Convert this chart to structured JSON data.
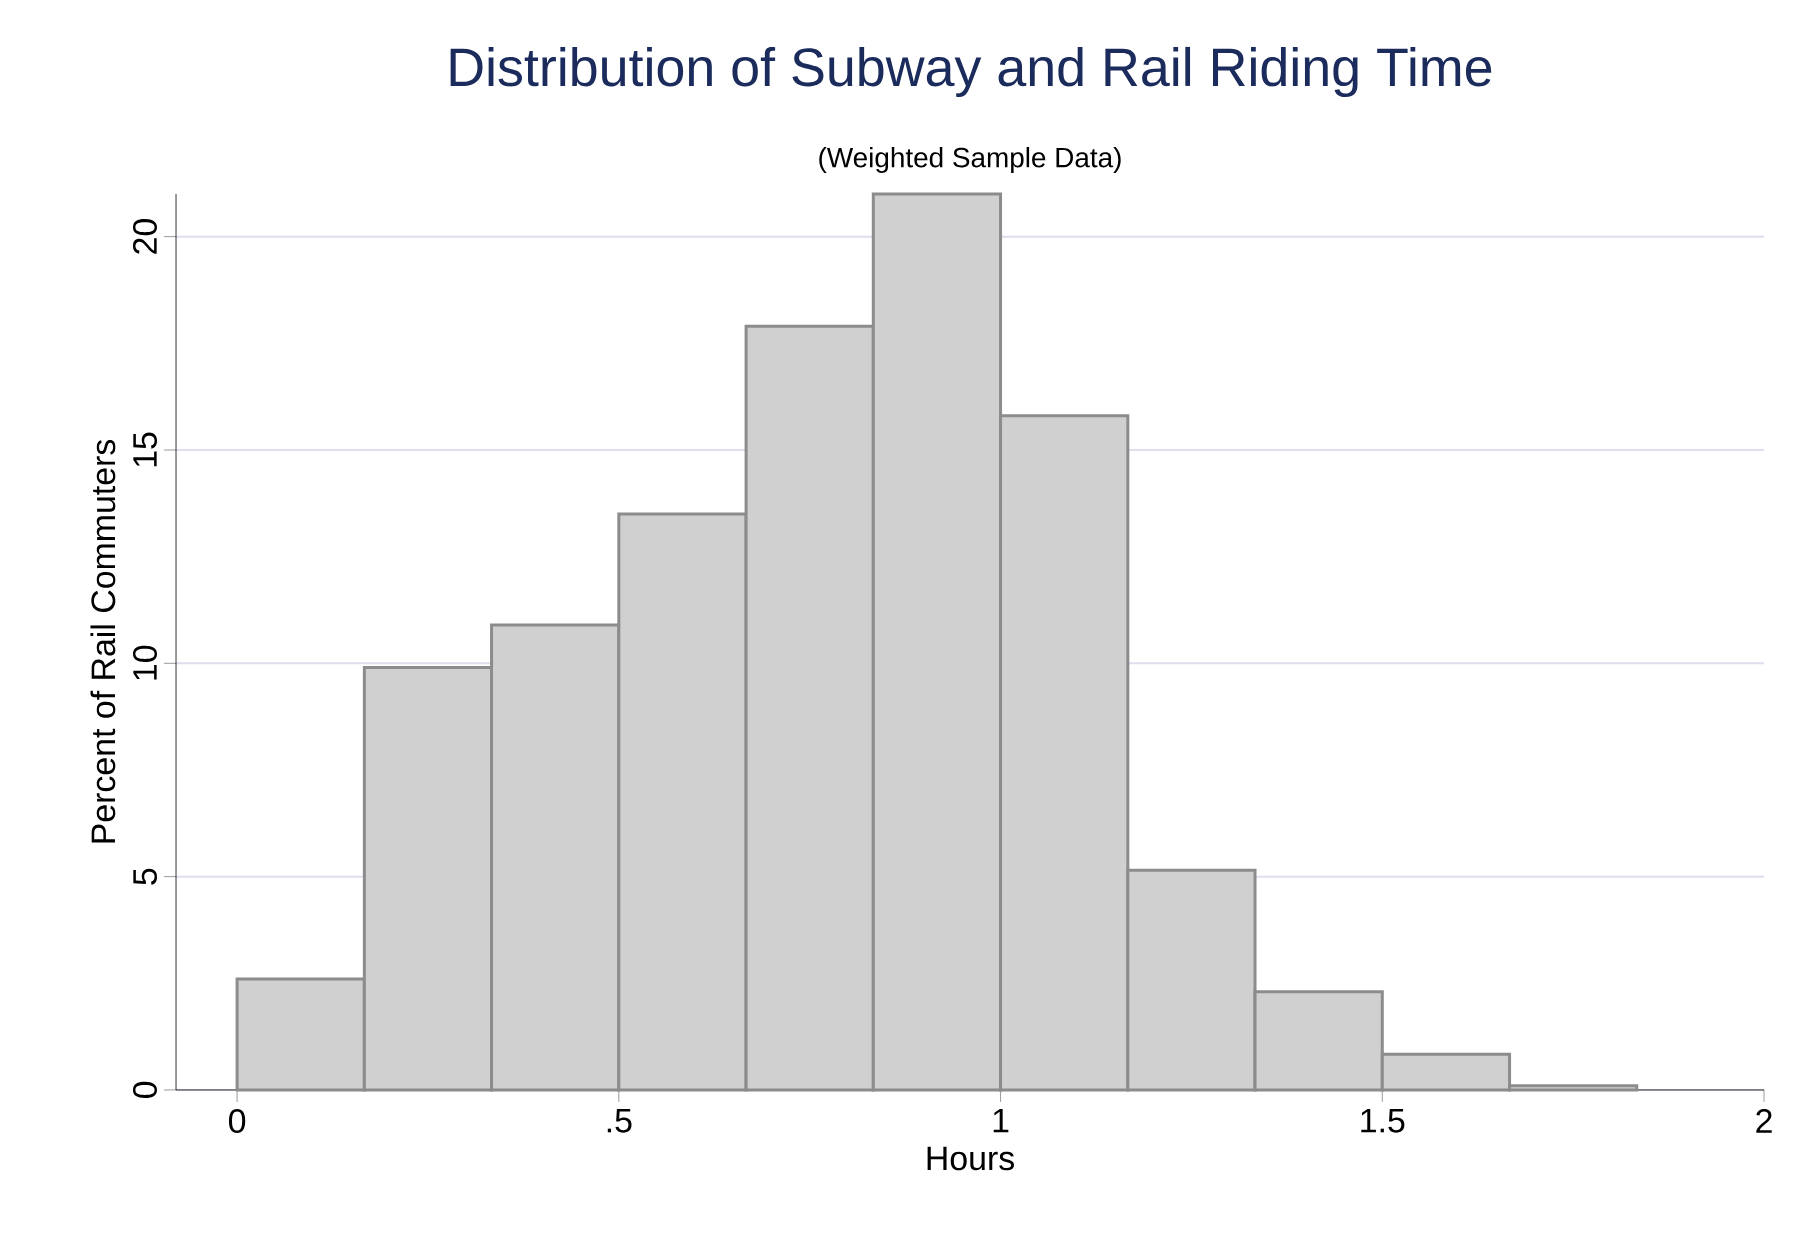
{
  "chart_data": {
    "type": "histogram",
    "title": "Distribution of Subway and Rail Riding Time",
    "subtitle": "(Weighted Sample Data)",
    "xlabel": "Hours",
    "ylabel": "Percent of Rail Commuters",
    "bins": [
      0,
      0.1667,
      0.3333,
      0.5,
      0.6667,
      0.8333,
      1,
      1.1667,
      1.3333,
      1.5,
      1.6667,
      1.8333
    ],
    "values": [
      2.6,
      9.9,
      10.9,
      13.5,
      17.9,
      21.0,
      15.8,
      5.15,
      2.3,
      0.84,
      0.1
    ],
    "color": "#d0d0d0",
    "xlim": [
      -0.08,
      2
    ],
    "ylim": [
      0,
      21
    ],
    "xticks": [
      0,
      {
        "value": 0.5,
        "label": ".5"
      },
      1,
      1.5,
      2
    ],
    "yticks": [
      0,
      5,
      10,
      15,
      20
    ],
    "grid": "y"
  }
}
